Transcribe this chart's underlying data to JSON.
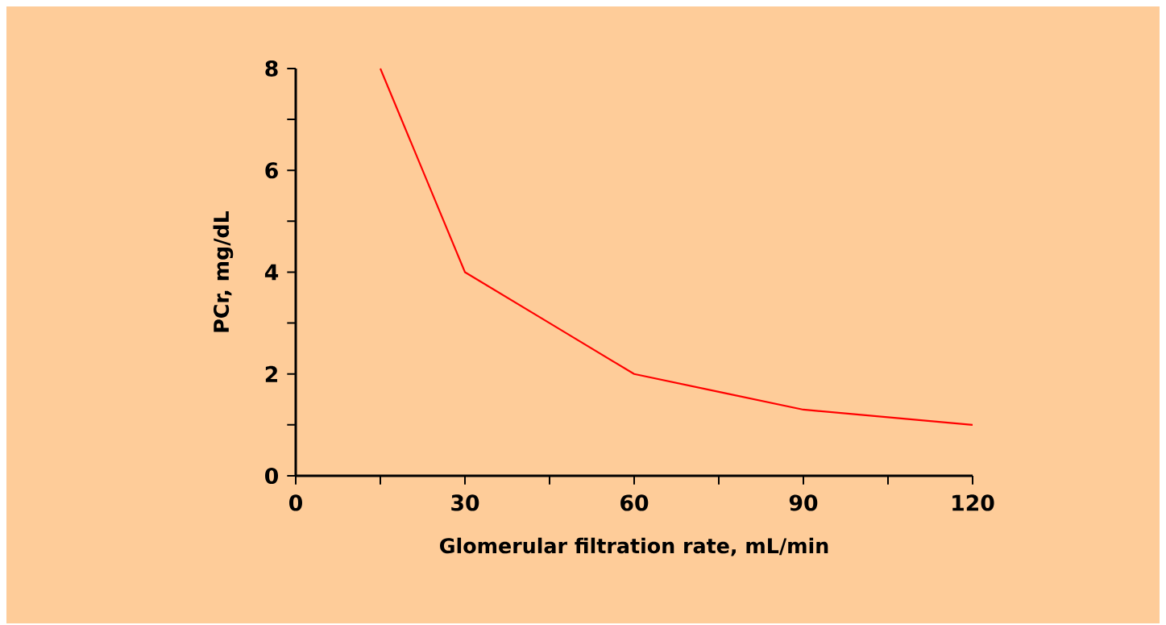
{
  "chart_data": {
    "type": "line",
    "xlabel": "Glomerular filtration rate, mL/min",
    "ylabel": "PCr, mg/dL",
    "x": [
      15,
      30,
      45,
      60,
      75,
      90,
      105,
      120
    ],
    "series": [
      {
        "color": "#ff0000",
        "values": [
          8,
          4,
          3,
          2,
          1.65,
          1.3,
          1.15,
          1
        ]
      }
    ],
    "xlim": [
      0,
      120
    ],
    "ylim": [
      0,
      8
    ],
    "xticks": [
      0,
      {
        "value": 15,
        "label": null
      },
      30,
      {
        "value": 45,
        "label": null
      },
      60,
      {
        "value": 75,
        "label": null
      },
      90,
      {
        "value": 105,
        "label": null
      },
      120
    ],
    "yticks": [
      0,
      {
        "value": 1,
        "label": null
      },
      2,
      {
        "value": 3,
        "label": null
      },
      4,
      {
        "value": 5,
        "label": null
      },
      6,
      {
        "value": 7,
        "label": null
      },
      8
    ],
    "grid": false,
    "marker": "none",
    "line_style": "solid"
  }
}
